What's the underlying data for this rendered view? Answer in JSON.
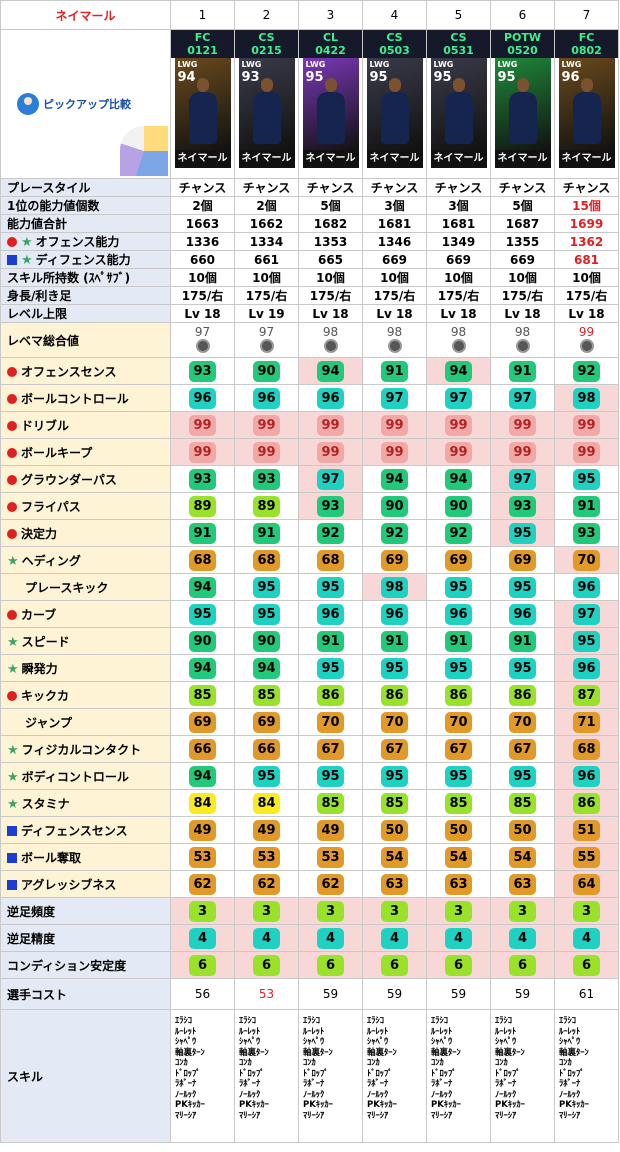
{
  "corner_label": "ネイマール",
  "columns": [
    "1",
    "2",
    "3",
    "4",
    "5",
    "6",
    "7"
  ],
  "pickup_label": "ピックアップ比較",
  "cards": [
    {
      "tag1": "FC",
      "tag2": "0121",
      "pos": "LWG",
      "ovr": "94",
      "name": "ネイマール",
      "bg": "#6a4a1c"
    },
    {
      "tag1": "CS",
      "tag2": "0215",
      "pos": "LWG",
      "ovr": "93",
      "name": "ネイマール",
      "bg": "#3b3b4a"
    },
    {
      "tag1": "CL",
      "tag2": "0422",
      "pos": "LWG",
      "ovr": "95",
      "name": "ネイマール",
      "bg": "#7a38b8"
    },
    {
      "tag1": "CS",
      "tag2": "0503",
      "pos": "LWG",
      "ovr": "95",
      "name": "ネイマール",
      "bg": "#3b3b4a"
    },
    {
      "tag1": "CS",
      "tag2": "0531",
      "pos": "LWG",
      "ovr": "95",
      "name": "ネイマール",
      "bg": "#3b3b4a"
    },
    {
      "tag1": "POTW",
      "tag2": "0520",
      "pos": "LWG",
      "ovr": "95",
      "name": "ネイマール",
      "bg": "#1f8a3a"
    },
    {
      "tag1": "FC",
      "tag2": "0802",
      "pos": "LWG",
      "ovr": "96",
      "name": "ネイマール",
      "bg": "#6a4a1c"
    }
  ],
  "info_rows": [
    {
      "label": "プレースタイル",
      "values": [
        "チャンス",
        "チャンス",
        "チャンス",
        "チャンス",
        "チャンス",
        "チャンス",
        "チャンス"
      ],
      "red": []
    },
    {
      "label": "1位の能力値個数",
      "values": [
        "2個",
        "2個",
        "5個",
        "3個",
        "3個",
        "5個",
        "15個"
      ],
      "red": [
        6
      ]
    },
    {
      "label": "能力値合計",
      "values": [
        "1663",
        "1662",
        "1682",
        "1681",
        "1681",
        "1687",
        "1699"
      ],
      "red": [
        6
      ]
    },
    {
      "label": "オフェンス能力",
      "icon": "dot-star",
      "values": [
        "1336",
        "1334",
        "1353",
        "1346",
        "1349",
        "1355",
        "1362"
      ],
      "red": [
        6
      ]
    },
    {
      "label": "ディフェンス能力",
      "icon": "sq-star",
      "values": [
        "660",
        "661",
        "665",
        "669",
        "669",
        "669",
        "681"
      ],
      "red": [
        6
      ]
    },
    {
      "label": "スキル所持数 (ｽﾍﾟｻﾌﾞ)",
      "values": [
        "10個",
        "10個",
        "10個",
        "10個",
        "10個",
        "10個",
        "10個"
      ],
      "red": []
    },
    {
      "label": "身長/利き足",
      "values": [
        "175/右",
        "175/右",
        "175/右",
        "175/右",
        "175/右",
        "175/右",
        "175/右"
      ],
      "red": []
    },
    {
      "label": "レベル上限",
      "values": [
        "Lv 18",
        "Lv 19",
        "Lv 18",
        "Lv 18",
        "Lv 18",
        "Lv 18",
        "Lv 18"
      ],
      "red": []
    }
  ],
  "overall": {
    "label": "レベマ総合値",
    "values": [
      "97",
      "97",
      "98",
      "98",
      "98",
      "98",
      "99"
    ],
    "red": [
      6
    ]
  },
  "stat_rows": [
    {
      "label": "オフェンスセンス",
      "icon": "dot",
      "values": [
        93,
        90,
        94,
        91,
        94,
        91,
        92
      ],
      "colors": [
        "g",
        "g",
        "g",
        "g",
        "g",
        "g",
        "g"
      ],
      "hl": [
        2,
        4
      ]
    },
    {
      "label": "ボールコントロール",
      "icon": "dot",
      "values": [
        96,
        96,
        96,
        97,
        97,
        97,
        98
      ],
      "colors": [
        "c",
        "c",
        "c",
        "c",
        "c",
        "c",
        "c"
      ],
      "hl": [
        6
      ]
    },
    {
      "label": "ドリブル",
      "icon": "dot",
      "values": [
        99,
        99,
        99,
        99,
        99,
        99,
        99
      ],
      "colors": [
        "p",
        "p",
        "p",
        "p",
        "p",
        "p",
        "p"
      ],
      "hl": [
        0,
        1,
        2,
        3,
        4,
        5,
        6
      ]
    },
    {
      "label": "ボールキープ",
      "icon": "dot",
      "values": [
        99,
        99,
        99,
        99,
        99,
        99,
        99
      ],
      "colors": [
        "p",
        "p",
        "p",
        "p",
        "p",
        "p",
        "p"
      ],
      "hl": [
        0,
        1,
        2,
        3,
        4,
        5,
        6
      ]
    },
    {
      "label": "グラウンダーパス",
      "icon": "dot",
      "values": [
        93,
        93,
        97,
        94,
        94,
        97,
        95
      ],
      "colors": [
        "g",
        "g",
        "c",
        "g",
        "g",
        "c",
        "c"
      ],
      "hl": [
        2,
        5
      ]
    },
    {
      "label": "フライパス",
      "icon": "dot",
      "values": [
        89,
        89,
        93,
        90,
        90,
        93,
        91
      ],
      "colors": [
        "l",
        "l",
        "g",
        "g",
        "g",
        "g",
        "g"
      ],
      "hl": [
        2,
        5
      ]
    },
    {
      "label": "決定力",
      "icon": "dot",
      "values": [
        91,
        91,
        92,
        92,
        92,
        95,
        93
      ],
      "colors": [
        "g",
        "g",
        "g",
        "g",
        "g",
        "c",
        "g"
      ],
      "hl": [
        5
      ]
    },
    {
      "label": "ヘディング",
      "icon": "star",
      "values": [
        68,
        68,
        68,
        69,
        69,
        69,
        70
      ],
      "colors": [
        "o",
        "o",
        "o",
        "o",
        "o",
        "o",
        "o"
      ],
      "hl": [
        6
      ]
    },
    {
      "label": "プレースキック",
      "icon": "none",
      "values": [
        94,
        95,
        95,
        98,
        95,
        95,
        96
      ],
      "colors": [
        "g",
        "c",
        "c",
        "c",
        "c",
        "c",
        "c"
      ],
      "hl": [
        3
      ]
    },
    {
      "label": "カーブ",
      "icon": "dot",
      "values": [
        95,
        95,
        96,
        96,
        96,
        96,
        97
      ],
      "colors": [
        "c",
        "c",
        "c",
        "c",
        "c",
        "c",
        "c"
      ],
      "hl": [
        6
      ]
    },
    {
      "label": "スピード",
      "icon": "star",
      "values": [
        90,
        90,
        91,
        91,
        91,
        91,
        95
      ],
      "colors": [
        "g",
        "g",
        "g",
        "g",
        "g",
        "g",
        "c"
      ],
      "hl": [
        6
      ]
    },
    {
      "label": "瞬発力",
      "icon": "star",
      "values": [
        94,
        94,
        95,
        95,
        95,
        95,
        96
      ],
      "colors": [
        "g",
        "g",
        "c",
        "c",
        "c",
        "c",
        "c"
      ],
      "hl": [
        6
      ]
    },
    {
      "label": "キックカ",
      "icon": "dot",
      "values": [
        85,
        85,
        86,
        86,
        86,
        86,
        87
      ],
      "colors": [
        "l",
        "l",
        "l",
        "l",
        "l",
        "l",
        "l"
      ],
      "hl": [
        6
      ]
    },
    {
      "label": "ジャンプ",
      "icon": "none",
      "values": [
        69,
        69,
        70,
        70,
        70,
        70,
        71
      ],
      "colors": [
        "o",
        "o",
        "o",
        "o",
        "o",
        "o",
        "o"
      ],
      "hl": [
        6
      ]
    },
    {
      "label": "フィジカルコンタクト",
      "icon": "star",
      "values": [
        66,
        66,
        67,
        67,
        67,
        67,
        68
      ],
      "colors": [
        "o",
        "o",
        "o",
        "o",
        "o",
        "o",
        "o"
      ],
      "hl": [
        6
      ]
    },
    {
      "label": "ボディコントロール",
      "icon": "star",
      "values": [
        94,
        95,
        95,
        95,
        95,
        95,
        96
      ],
      "colors": [
        "g",
        "c",
        "c",
        "c",
        "c",
        "c",
        "c"
      ],
      "hl": [
        6
      ]
    },
    {
      "label": "スタミナ",
      "icon": "star",
      "values": [
        84,
        84,
        85,
        85,
        85,
        85,
        86
      ],
      "colors": [
        "y",
        "y",
        "l",
        "l",
        "l",
        "l",
        "l"
      ],
      "hl": [
        6
      ]
    },
    {
      "label": "ディフェンスセンス",
      "icon": "sq",
      "values": [
        49,
        49,
        49,
        50,
        50,
        50,
        51
      ],
      "colors": [
        "o",
        "o",
        "o",
        "o",
        "o",
        "o",
        "o"
      ],
      "hl": [
        6
      ]
    },
    {
      "label": "ボール奪取",
      "icon": "sq",
      "values": [
        53,
        53,
        53,
        54,
        54,
        54,
        55
      ],
      "colors": [
        "o",
        "o",
        "o",
        "o",
        "o",
        "o",
        "o"
      ],
      "hl": [
        6
      ]
    },
    {
      "label": "アグレッシブネス",
      "icon": "sq",
      "values": [
        62,
        62,
        62,
        63,
        63,
        63,
        64
      ],
      "colors": [
        "o",
        "o",
        "o",
        "o",
        "o",
        "o",
        "o"
      ],
      "hl": [
        6
      ]
    }
  ],
  "misc_rows": [
    {
      "label": "逆足頻度",
      "values": [
        3,
        3,
        3,
        3,
        3,
        3,
        3
      ],
      "colors": [
        "l",
        "l",
        "l",
        "l",
        "l",
        "l",
        "l"
      ]
    },
    {
      "label": "逆足精度",
      "values": [
        4,
        4,
        4,
        4,
        4,
        4,
        4
      ],
      "colors": [
        "c",
        "c",
        "c",
        "c",
        "c",
        "c",
        "c"
      ]
    },
    {
      "label": "コンディション安定度",
      "values": [
        6,
        6,
        6,
        6,
        6,
        6,
        6
      ],
      "colors": [
        "l",
        "l",
        "l",
        "l",
        "l",
        "l",
        "l"
      ]
    }
  ],
  "cost": {
    "label": "選手コスト",
    "values": [
      "56",
      "53",
      "59",
      "59",
      "59",
      "59",
      "61"
    ],
    "red": [
      1
    ]
  },
  "skills": {
    "label": "スキル",
    "list": [
      "ｴﾗｼｺ",
      "ﾙｰﾚｯﾄ",
      "ｼｬﾍﾟｳ",
      "軸裏ﾀｰﾝ",
      "ｺﾝｶ",
      "ﾄﾞﾛｯﾌﾟ",
      "ﾗﾎﾞｰﾅ",
      "ﾉｰﾙｯｸ",
      "PKｷｯｶｰ",
      "ﾏﾘｰｼｱ"
    ]
  },
  "colors": {
    "g": "#22c97b",
    "c": "#1fd1c0",
    "o": "#e19a2a",
    "l": "#99e22a",
    "y": "#f8ec1c",
    "p": "#f3a8a8",
    "highlight": "#f8d7d7",
    "label_bg": "#e3eaf5",
    "section_bg": "#fff3d6"
  }
}
